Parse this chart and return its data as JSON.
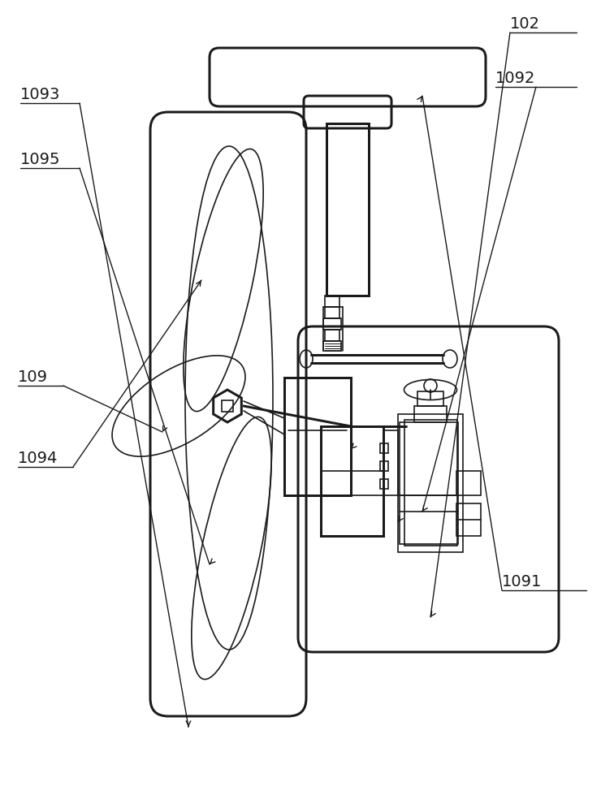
{
  "bg_color": "#ffffff",
  "line_color": "#1a1a1a",
  "line_width": 1.2,
  "label_fontsize": 14
}
